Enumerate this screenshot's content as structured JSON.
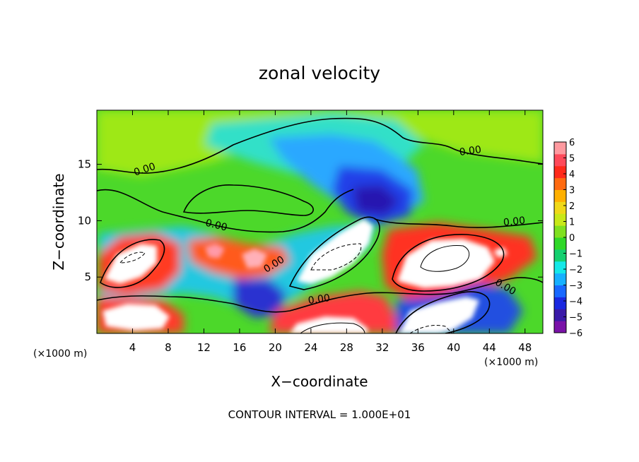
{
  "chart_data": {
    "type": "heatmap",
    "title": "zonal velocity",
    "xlabel": "X−coordinate",
    "ylabel": "Z−coordinate",
    "x_unit_left": "(×1000 m)",
    "x_unit_right": "(×1000 m)",
    "xlim": [
      0,
      50
    ],
    "ylim": [
      0,
      19.8
    ],
    "xticks": [
      4,
      8,
      12,
      16,
      20,
      24,
      28,
      32,
      36,
      40,
      44,
      48
    ],
    "yticks": [
      5,
      10,
      15
    ],
    "colorbar": {
      "ticks": [
        6,
        5,
        4,
        3,
        2,
        1,
        0,
        -1,
        -2,
        -3,
        -4,
        -5,
        -6
      ],
      "tick_labels": [
        "6",
        "5",
        "4",
        "3",
        "2",
        "1",
        "0",
        "−1",
        "−2",
        "−3",
        "−4",
        "−5",
        "−6"
      ],
      "colors": [
        "#7a12a8",
        "#3a1aa8",
        "#1a28e0",
        "#1868ff",
        "#16b0ff",
        "#14e8e8",
        "#14d070",
        "#30d828",
        "#80e020",
        "#c8e818",
        "#f0d818",
        "#ffb000",
        "#ff6a10",
        "#ff2a1a",
        "#ff4a5a",
        "#ff9aa0"
      ]
    },
    "contour_labels": [
      "0.00",
      "0.00",
      "0.00",
      "0.00",
      "0.00",
      "0.00",
      "0.00"
    ],
    "footer": "CONTOUR INTERVAL = 1.000E+01"
  }
}
